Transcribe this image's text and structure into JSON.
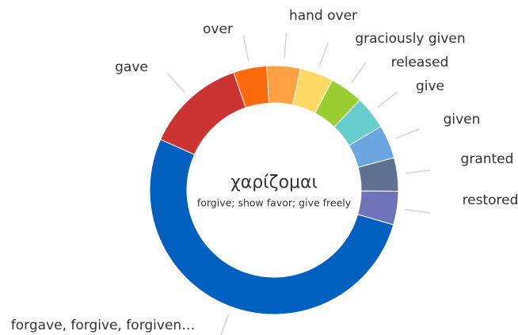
{
  "chart_data": {
    "type": "donut",
    "center_title": "χαρίζομαι",
    "center_subtitle": "forgive; show favor; give freely",
    "categories": [
      "over",
      "hand over",
      "graciously given",
      "released",
      "give",
      "given",
      "granted",
      "restored",
      "forgave, forgive, forgiven…",
      "gave"
    ],
    "values": [
      1,
      1,
      1,
      1,
      1,
      1,
      1,
      1,
      12,
      3
    ],
    "colors": [
      "#fb6a0c",
      "#ffa044",
      "#ffd966",
      "#9acd32",
      "#66cccc",
      "#6ca6e0",
      "#5f7090",
      "#6f74b8",
      "#0060c0",
      "#cc3333"
    ]
  }
}
